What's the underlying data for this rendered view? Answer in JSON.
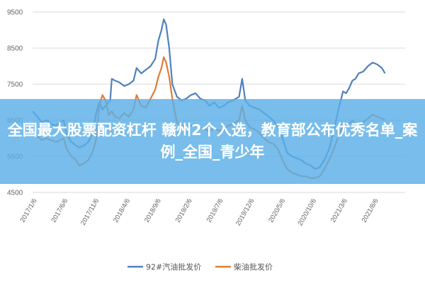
{
  "banner": {
    "text": "全国最大股票配资杠杆 赣州2个入选，教育部公布优秀名单_案例_全国_青少年",
    "bg_color": "#5aaee6"
  },
  "chart_data": {
    "type": "line",
    "title": "",
    "xlabel": "",
    "ylabel": "",
    "ylim": [
      4500,
      9500
    ],
    "yticks": [
      4500,
      5500,
      6500,
      7500,
      8500,
      9500
    ],
    "xlim": [
      0,
      24
    ],
    "xticks": [
      {
        "x": 0,
        "label": "2017/1/6"
      },
      {
        "x": 2,
        "label": "2017/6/6"
      },
      {
        "x": 4,
        "label": "2017/11/6"
      },
      {
        "x": 6,
        "label": "2018/4/6"
      },
      {
        "x": 8,
        "label": "2018/9/6"
      },
      {
        "x": 10,
        "label": "2019/2/6"
      },
      {
        "x": 12,
        "label": "2019/7/6"
      },
      {
        "x": 14,
        "label": "2019/12/6"
      },
      {
        "x": 16,
        "label": "2020/5/6"
      },
      {
        "x": 18,
        "label": "2020/10/6"
      },
      {
        "x": 20,
        "label": "2021/3/6"
      },
      {
        "x": 22,
        "label": "2021/8/6"
      }
    ],
    "grid": "horizontal",
    "legend_position": "bottom",
    "series": [
      {
        "name": "92#汽油批发价",
        "color": "#4f81bd",
        "points": [
          [
            0.0,
            6750
          ],
          [
            0.3,
            6600
          ],
          [
            0.6,
            6450
          ],
          [
            0.9,
            6500
          ],
          [
            1.2,
            6400
          ],
          [
            1.5,
            6350
          ],
          [
            1.8,
            6450
          ],
          [
            2.0,
            6500
          ],
          [
            2.2,
            6100
          ],
          [
            2.5,
            5900
          ],
          [
            2.8,
            5800
          ],
          [
            3.0,
            5750
          ],
          [
            3.3,
            5800
          ],
          [
            3.6,
            5900
          ],
          [
            3.9,
            6200
          ],
          [
            4.1,
            6700
          ],
          [
            4.3,
            7000
          ],
          [
            4.5,
            6800
          ],
          [
            4.7,
            6900
          ],
          [
            4.9,
            7000
          ],
          [
            5.0,
            7050
          ],
          [
            5.1,
            7650
          ],
          [
            5.3,
            7600
          ],
          [
            5.6,
            7550
          ],
          [
            5.9,
            7450
          ],
          [
            6.2,
            7500
          ],
          [
            6.5,
            7600
          ],
          [
            6.7,
            7950
          ],
          [
            7.0,
            7800
          ],
          [
            7.3,
            7900
          ],
          [
            7.6,
            8000
          ],
          [
            7.9,
            8200
          ],
          [
            8.1,
            8700
          ],
          [
            8.3,
            9000
          ],
          [
            8.45,
            9300
          ],
          [
            8.6,
            9150
          ],
          [
            8.8,
            8500
          ],
          [
            9.0,
            7500
          ],
          [
            9.3,
            7150
          ],
          [
            9.6,
            7050
          ],
          [
            9.9,
            7100
          ],
          [
            10.2,
            7200
          ],
          [
            10.5,
            7250
          ],
          [
            10.8,
            7100
          ],
          [
            11.1,
            7050
          ],
          [
            11.4,
            6900
          ],
          [
            11.7,
            7000
          ],
          [
            12.0,
            6850
          ],
          [
            12.3,
            6900
          ],
          [
            12.6,
            7000
          ],
          [
            12.9,
            7050
          ],
          [
            13.1,
            7100
          ],
          [
            13.3,
            7150
          ],
          [
            13.5,
            7650
          ],
          [
            13.7,
            7050
          ],
          [
            14.0,
            6900
          ],
          [
            14.3,
            6850
          ],
          [
            14.6,
            6800
          ],
          [
            14.9,
            6700
          ],
          [
            15.2,
            6600
          ],
          [
            15.5,
            6500
          ],
          [
            15.8,
            6300
          ],
          [
            16.1,
            6000
          ],
          [
            16.4,
            5600
          ],
          [
            16.7,
            5500
          ],
          [
            17.0,
            5450
          ],
          [
            17.3,
            5400
          ],
          [
            17.6,
            5300
          ],
          [
            17.9,
            5250
          ],
          [
            18.2,
            5150
          ],
          [
            18.5,
            5200
          ],
          [
            18.8,
            5400
          ],
          [
            19.1,
            5700
          ],
          [
            19.4,
            6200
          ],
          [
            19.7,
            6800
          ],
          [
            20.0,
            7300
          ],
          [
            20.2,
            7250
          ],
          [
            20.4,
            7400
          ],
          [
            20.6,
            7600
          ],
          [
            20.8,
            7650
          ],
          [
            21.0,
            7800
          ],
          [
            21.3,
            7850
          ],
          [
            21.6,
            8000
          ],
          [
            21.9,
            8100
          ],
          [
            22.2,
            8050
          ],
          [
            22.5,
            7950
          ],
          [
            22.7,
            7800
          ]
        ]
      },
      {
        "name": "柴油批发价",
        "color": "#e07b39",
        "points": [
          [
            0.0,
            6100
          ],
          [
            0.3,
            6050
          ],
          [
            0.6,
            5950
          ],
          [
            0.9,
            6000
          ],
          [
            1.2,
            5950
          ],
          [
            1.5,
            5900
          ],
          [
            1.8,
            5950
          ],
          [
            2.0,
            6000
          ],
          [
            2.2,
            5700
          ],
          [
            2.5,
            5500
          ],
          [
            2.8,
            5400
          ],
          [
            3.0,
            5250
          ],
          [
            3.3,
            5300
          ],
          [
            3.6,
            5400
          ],
          [
            3.9,
            5650
          ],
          [
            4.1,
            6000
          ],
          [
            4.3,
            6900
          ],
          [
            4.5,
            7200
          ],
          [
            4.7,
            7050
          ],
          [
            4.9,
            6650
          ],
          [
            5.1,
            6750
          ],
          [
            5.3,
            6600
          ],
          [
            5.6,
            6550
          ],
          [
            5.9,
            6700
          ],
          [
            6.2,
            6600
          ],
          [
            6.5,
            6800
          ],
          [
            6.7,
            7200
          ],
          [
            7.0,
            6900
          ],
          [
            7.3,
            6850
          ],
          [
            7.6,
            7100
          ],
          [
            7.9,
            7350
          ],
          [
            8.1,
            7700
          ],
          [
            8.3,
            7950
          ],
          [
            8.45,
            8250
          ],
          [
            8.6,
            8100
          ],
          [
            8.8,
            7700
          ],
          [
            9.0,
            7100
          ],
          [
            9.3,
            6450
          ],
          [
            9.6,
            6350
          ],
          [
            9.9,
            6300
          ],
          [
            10.2,
            6350
          ],
          [
            10.5,
            6400
          ],
          [
            10.8,
            6300
          ],
          [
            11.1,
            6250
          ],
          [
            11.4,
            6200
          ],
          [
            11.7,
            6300
          ],
          [
            12.0,
            6200
          ],
          [
            12.3,
            6250
          ],
          [
            12.6,
            6350
          ],
          [
            12.9,
            6400
          ],
          [
            13.1,
            6450
          ],
          [
            13.3,
            6500
          ],
          [
            13.5,
            6900
          ],
          [
            13.7,
            6500
          ],
          [
            14.0,
            6300
          ],
          [
            14.3,
            6250
          ],
          [
            14.6,
            6150
          ],
          [
            14.9,
            6000
          ],
          [
            15.2,
            5900
          ],
          [
            15.5,
            5850
          ],
          [
            15.8,
            5700
          ],
          [
            16.1,
            5400
          ],
          [
            16.4,
            5150
          ],
          [
            16.7,
            5050
          ],
          [
            17.0,
            5000
          ],
          [
            17.3,
            4950
          ],
          [
            17.6,
            4950
          ],
          [
            17.9,
            4900
          ],
          [
            18.2,
            4900
          ],
          [
            18.5,
            4950
          ],
          [
            18.8,
            5150
          ],
          [
            19.1,
            5400
          ],
          [
            19.4,
            5700
          ],
          [
            19.7,
            6050
          ],
          [
            20.0,
            6350
          ],
          [
            20.2,
            6300
          ],
          [
            20.4,
            6400
          ],
          [
            20.6,
            6500
          ],
          [
            20.8,
            6400
          ],
          [
            21.0,
            6350
          ],
          [
            21.3,
            6450
          ],
          [
            21.6,
            6550
          ],
          [
            21.9,
            6650
          ],
          [
            22.2,
            6600
          ],
          [
            22.5,
            6550
          ],
          [
            22.7,
            6500
          ]
        ]
      }
    ]
  }
}
